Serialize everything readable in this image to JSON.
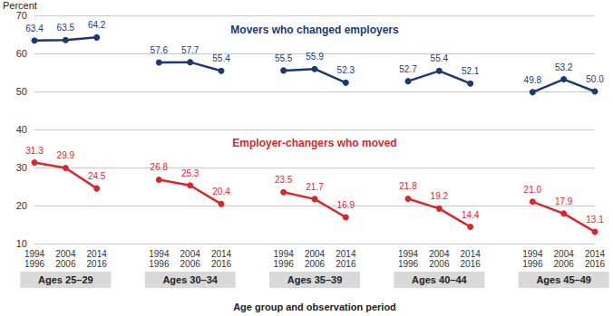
{
  "chart_data": {
    "type": "line",
    "y_label": "Percent",
    "x_label": "Age group and observation period",
    "categories": [
      "1994\n1996",
      "2004\n2006",
      "2014\n2016",
      null,
      "1994\n1996",
      "2004\n2006",
      "2014\n2016",
      null,
      "1994\n1996",
      "2004\n2006",
      "2014\n2016",
      null,
      "1994\n1996",
      "2004\n2006",
      "2014\n2016",
      null,
      "1994\n1996",
      "2004\n2006",
      "2014\n2016"
    ],
    "group_labels": [
      "Ages 25–29",
      "Ages 30–34",
      "Ages 35–39",
      "Ages 40–44",
      "Ages 45–49"
    ],
    "series": [
      {
        "name": "Movers who changed employers",
        "color": "#1c3a70",
        "values": [
          63.4,
          63.5,
          64.2,
          null,
          57.6,
          57.7,
          55.4,
          null,
          55.5,
          55.9,
          52.3,
          null,
          52.7,
          55.4,
          52.1,
          null,
          49.8,
          53.2,
          50.0
        ],
        "value_labels": [
          "63.4",
          "63.5",
          "64.2",
          null,
          "57.6",
          "57.7",
          "55.4",
          null,
          "55.5",
          "55.9",
          "52.3",
          null,
          "52.7",
          "55.4",
          "52.1",
          null,
          "49.8",
          "53.2",
          "50.0"
        ]
      },
      {
        "name": "Employer-changers who moved",
        "color": "#d7282f",
        "values": [
          31.3,
          29.9,
          24.5,
          null,
          26.8,
          25.3,
          20.4,
          null,
          23.5,
          21.7,
          16.9,
          null,
          21.8,
          19.2,
          14.4,
          null,
          21.0,
          17.9,
          13.1
        ],
        "value_labels": [
          "31.3",
          "29.9",
          "24.5",
          null,
          "26.8",
          "25.3",
          "20.4",
          null,
          "23.5",
          "21.7",
          "16.9",
          null,
          "21.8",
          "19.2",
          "14.4",
          null,
          "21.0",
          "17.9",
          "13.1"
        ]
      }
    ],
    "ylim": [
      10,
      70
    ],
    "yticks": [
      10,
      20,
      30,
      40,
      50,
      60,
      70
    ],
    "grid": true,
    "data_labels": true,
    "marker": "circle"
  }
}
